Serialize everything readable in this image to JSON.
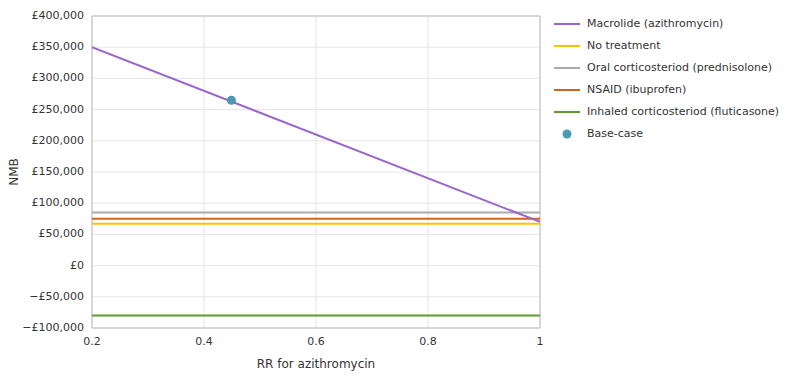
{
  "chart_data": {
    "type": "line",
    "xlabel": "RR for azithromycin",
    "ylabel": "NMB",
    "xlim": [
      0.2,
      1
    ],
    "ylim": [
      -100000,
      400000
    ],
    "xticks": [
      0.2,
      0.4,
      0.6,
      0.8,
      1
    ],
    "yticks": [
      {
        "value": -100000,
        "label": "−£100,000"
      },
      {
        "value": -50000,
        "label": "−£50,000"
      },
      {
        "value": 0,
        "label": "£0"
      },
      {
        "value": 50000,
        "label": "£50,000"
      },
      {
        "value": 100000,
        "label": "£100,000"
      },
      {
        "value": 150000,
        "label": "£150,000"
      },
      {
        "value": 200000,
        "label": "£200,000"
      },
      {
        "value": 250000,
        "label": "£250,000"
      },
      {
        "value": 300000,
        "label": "£300,000"
      },
      {
        "value": 350000,
        "label": "£350,000"
      },
      {
        "value": 400000,
        "label": "£400,000"
      }
    ],
    "grid": true,
    "legend": "right",
    "series": [
      {
        "name": "Macrolide (azithromycin)",
        "color": "#9966cc",
        "x": [
          0.2,
          1
        ],
        "values": [
          350000,
          70000
        ]
      },
      {
        "name": "No treatment",
        "color": "#ffc000",
        "x": [
          0.2,
          1
        ],
        "values": [
          67000,
          67000
        ]
      },
      {
        "name": "Oral corticosteriod (prednisolone)",
        "color": "#aaaaaa",
        "x": [
          0.2,
          1
        ],
        "values": [
          85000,
          85000
        ]
      },
      {
        "name": "NSAID (ibuprofen)",
        "color": "#cc6622",
        "x": [
          0.2,
          1
        ],
        "values": [
          75000,
          75000
        ]
      },
      {
        "name": "Inhaled corticosteriod (fluticasone)",
        "color": "#5c9c2e",
        "x": [
          0.2,
          1
        ],
        "values": [
          -80000,
          -80000
        ]
      },
      {
        "name": "Base-case",
        "color": "#4a9ab5",
        "type": "scatter",
        "marker": "circle",
        "x": [
          0.449
        ],
        "values": [
          265000
        ]
      }
    ]
  }
}
